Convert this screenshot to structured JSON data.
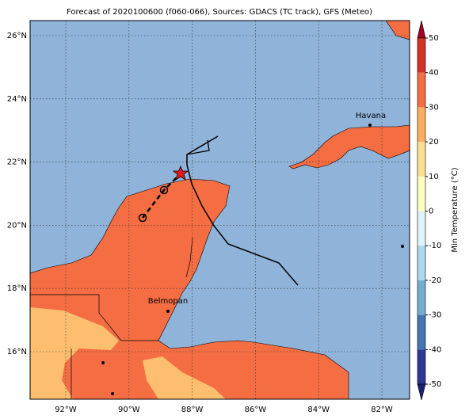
{
  "title": "Forecast of 2020100600 (f060-066), Sources: GDACS (TC track), GFS (Meteo)",
  "lon_labels": [
    "92°W",
    "90°W",
    "88°W",
    "86°W",
    "84°W",
    "82°W"
  ],
  "lat_labels": [
    "26°N",
    "24°N",
    "22°N",
    "20°N",
    "18°N",
    "16°N"
  ],
  "colorbar": {
    "label": "Min Temperature (°C)",
    "ticks": [
      "50",
      "40",
      "30",
      "20",
      "10",
      "0",
      "-10",
      "-20",
      "-30",
      "-40",
      "-50"
    ],
    "colors": [
      "#a50026",
      "#d73027",
      "#f46d43",
      "#fdae61",
      "#fee090",
      "#ffffbf",
      "#e0f3f8",
      "#abd9e9",
      "#74add1",
      "#4575b4",
      "#313695",
      "#1e1e78"
    ]
  },
  "cities": [
    "Havana",
    "Belmopan"
  ]
}
